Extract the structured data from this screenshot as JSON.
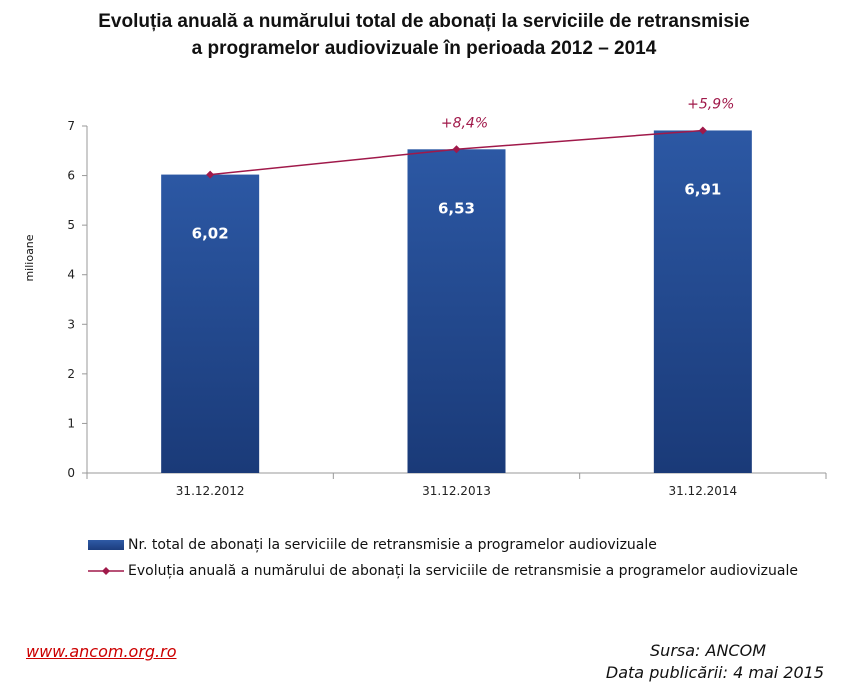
{
  "title_line1": "Evoluția anuală a numărului total de abonați la serviciile de retransmisie",
  "title_line2": "a programelor audiovizuale în perioada 2012 – 2014",
  "footer": {
    "link": "www.ancom.org.ro",
    "source": "Sursa: ANCOM",
    "published": "Data publicării: 4 mai 2015"
  },
  "colors": {
    "bar": "#1f4a93",
    "line": "#a0194a",
    "axis": "#999999"
  },
  "chart_data": {
    "type": "bar",
    "categories": [
      "31.12.2012",
      "31.12.2013",
      "31.12.2014"
    ],
    "ylabel": "milioane",
    "xlabel": "",
    "ylim": [
      0,
      7
    ],
    "yticks": [
      "0",
      "1",
      "2",
      "3",
      "4",
      "5",
      "6",
      "7"
    ],
    "grid": false,
    "legend_position": "bottom",
    "series": [
      {
        "name": "Nr. total de abonați la serviciile de retransmisie a programelor audiovizuale",
        "type": "bar",
        "values": [
          6.02,
          6.53,
          6.91
        ],
        "labels": [
          "6,02",
          "6,53",
          "6,91"
        ]
      },
      {
        "name": "Evoluția anuală a numărului de abonați la serviciile de retransmisie a programelor audiovizuale",
        "type": "line",
        "values": [
          6.02,
          6.53,
          6.91
        ],
        "annotations": [
          "",
          "+8,4%",
          "+5,9%"
        ]
      }
    ]
  }
}
